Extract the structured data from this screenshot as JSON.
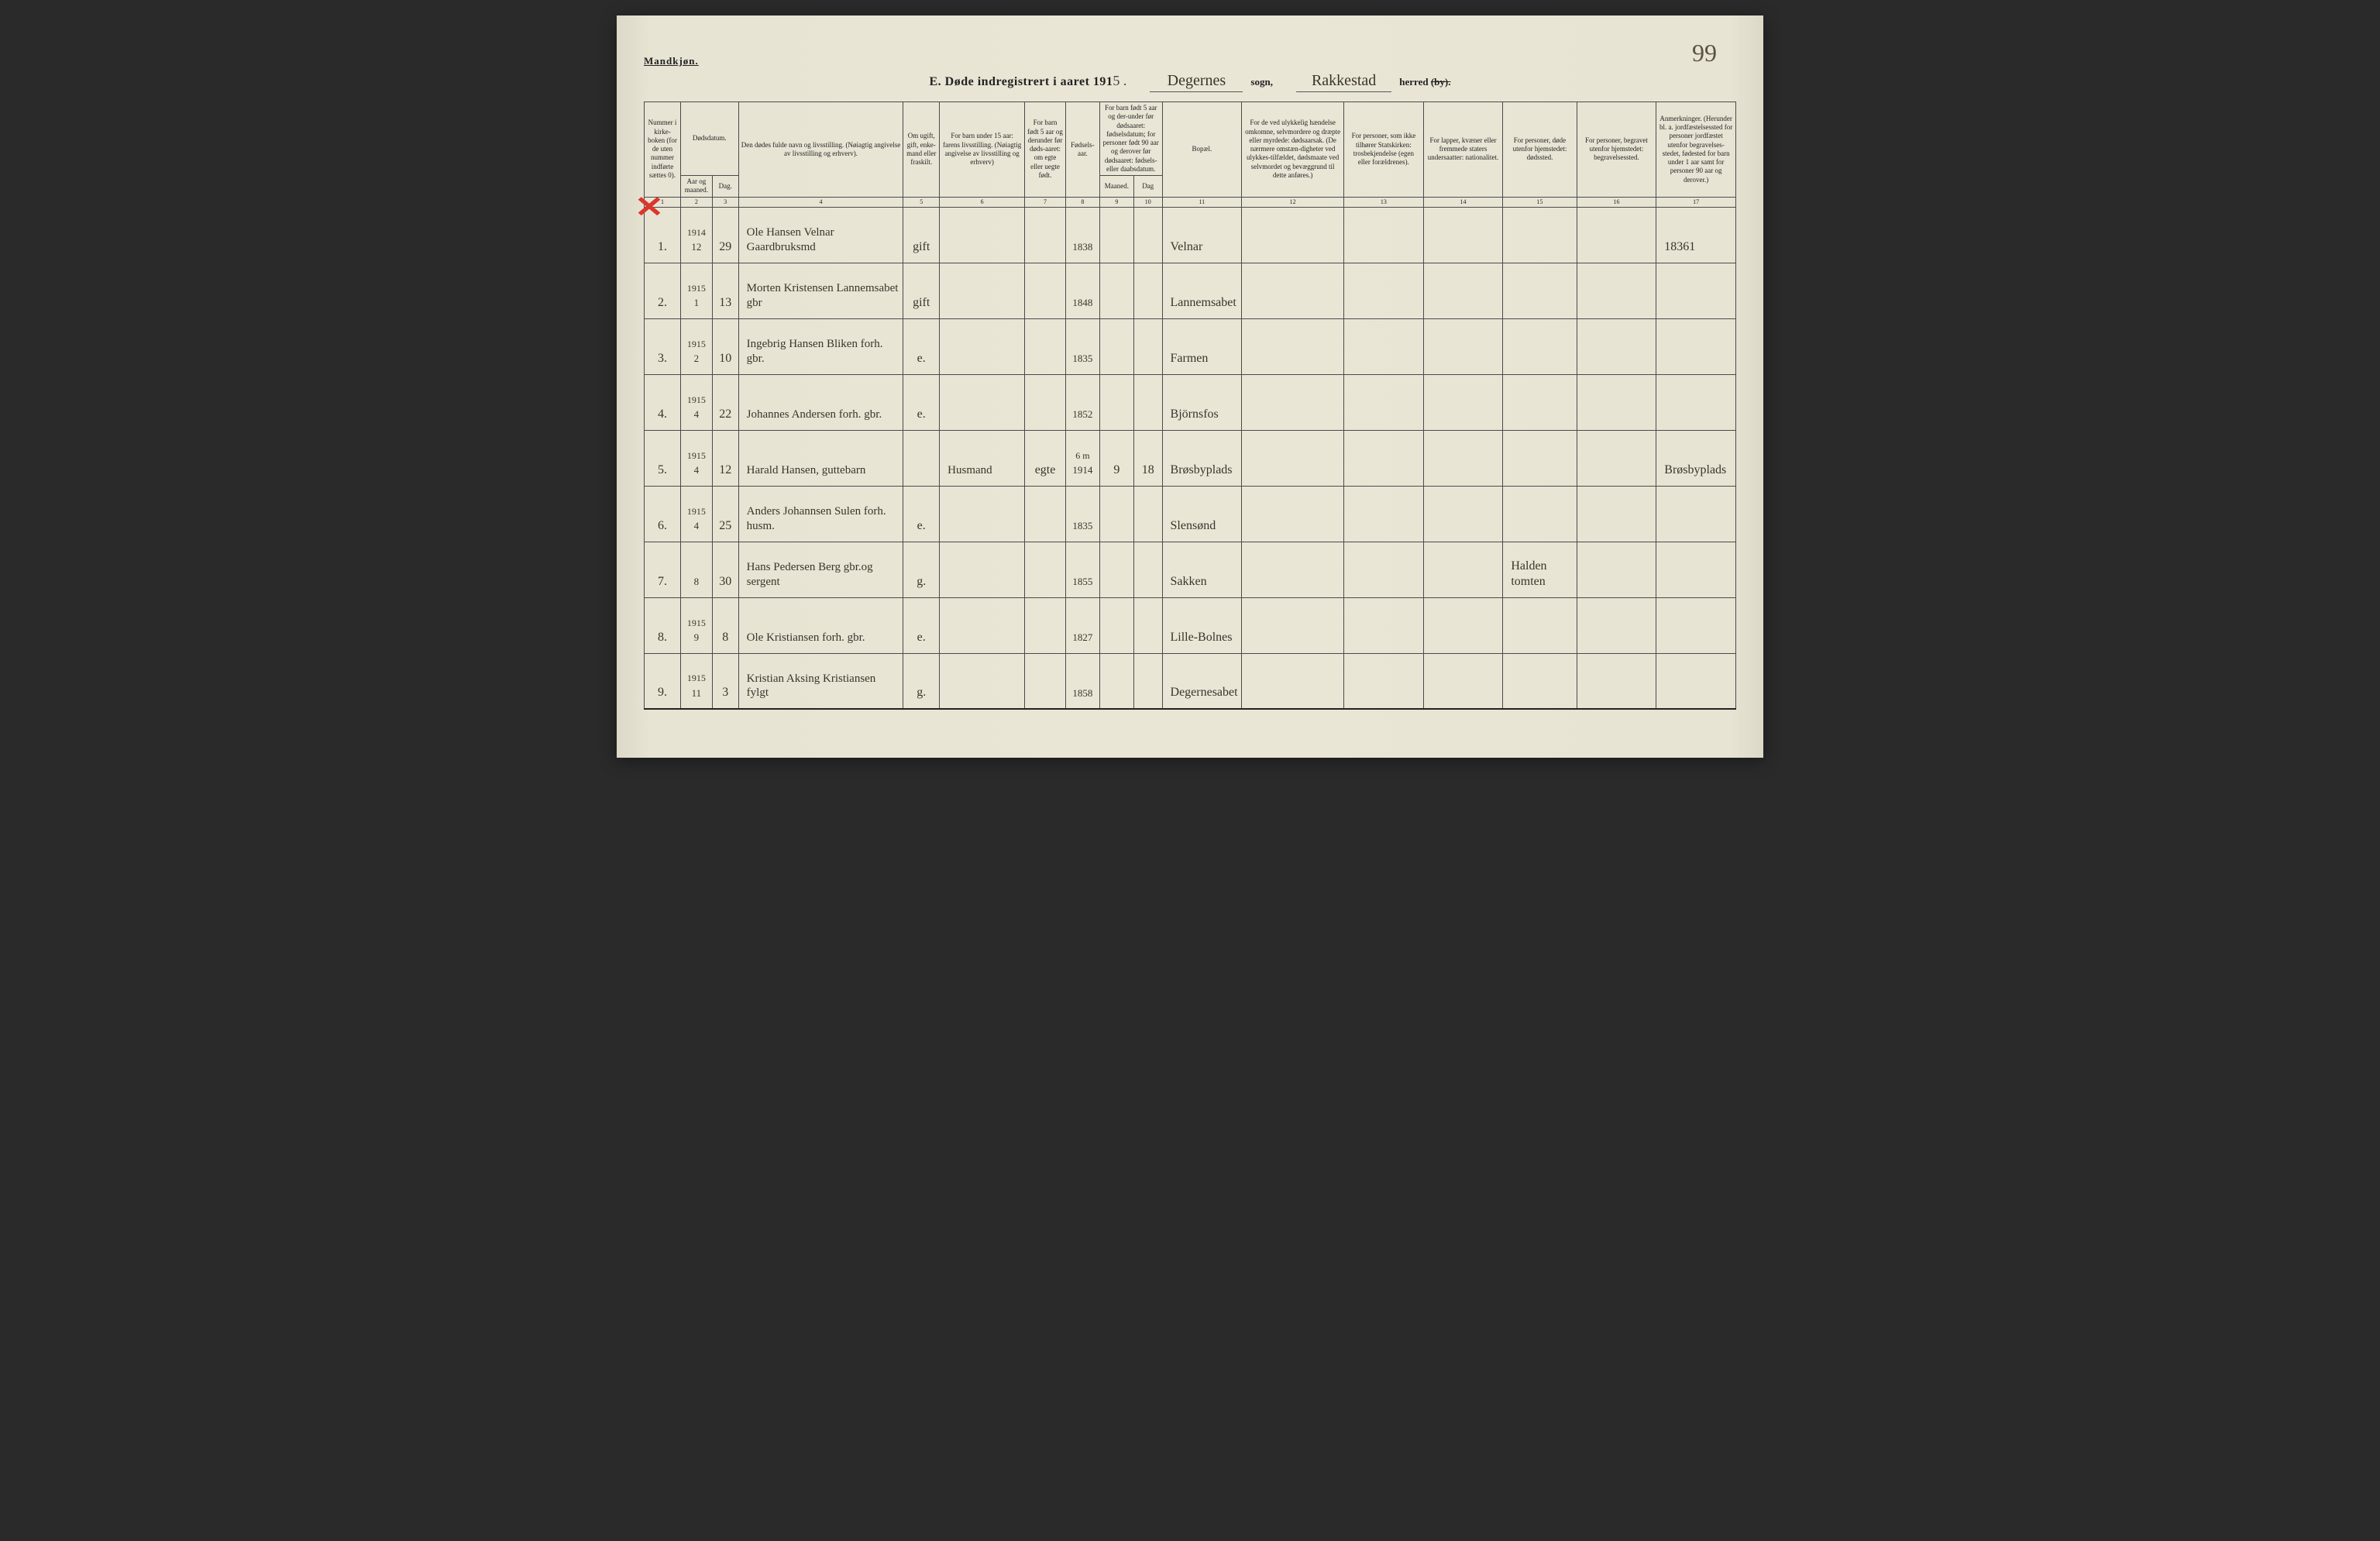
{
  "page": {
    "gender_label": "Mandkjøn.",
    "page_number": "99",
    "title_prefix": "E.  Døde indregistrert i aaret 191",
    "title_year_hand": "5 .",
    "sogn_hand": "Degernes",
    "sogn_label": "sogn,",
    "herred_hand": "Rakkestad",
    "herred_label": "herred",
    "herred_by": "(by)."
  },
  "headers": {
    "c1": "Nummer i kirke-boken (for de uten nummer indførte sættes 0).",
    "c2_top": "Dødsdatum.",
    "c2a": "Aar og maaned.",
    "c2b": "Dag.",
    "c4": "Den dødes fulde navn og livsstilling. (Nøiagtig angivelse av livsstilling og erhverv).",
    "c5": "Om ugift, gift, enke-mand eller fraskilt.",
    "c6": "For barn under 15 aar: farens livsstilling. (Nøiagtig angivelse av livsstilling og erhverv)",
    "c7": "For barn født 5 aar og derunder før døds-aaret: om egte eller uegte født.",
    "c8": "Fødsels-aar.",
    "c9_top": "For barn født 5 aar og der-under før dødsaaret: fødselsdatum; for personer født 90 aar og derover før dødsaaret: fødsels- eller daabsdatum.",
    "c9a": "Maaned.",
    "c9b": "Dag",
    "c11": "Bopæl.",
    "c12": "For de ved ulykkelig hændelse omkomne, selvmordere og dræpte eller myrdede: dødsaarsak. (De nærmere omstæn-digheter ved ulykkes-tilfældet, dødsmaate ved selvmordet og bevæggrund til dette anføres.)",
    "c13": "For personer, som ikke tilhører Statskirken: trosbekjendelse (egen eller forældrenes).",
    "c14": "For lapper, kvæner eller fremmede staters undersaatter: nationalitet.",
    "c15": "For personer, døde utenfor hjemstedet: dødssted.",
    "c16": "For personer, begravet utenfor hjemstedet: begravelsessted.",
    "c17": "Anmerkninger. (Herunder bl. a. jordfæstelsessted for personer jordfæstet utenfor begravelses-stedet, fødested for barn under 1 aar samt for personer 90 aar og derover.)"
  },
  "colnums": {
    "n1": "1",
    "n2": "2",
    "n3": "3",
    "n4": "4",
    "n5": "5",
    "n6": "6",
    "n7": "7",
    "n8": "8",
    "n9": "9",
    "n10": "10",
    "n11": "11",
    "n12": "12",
    "n13": "13",
    "n14": "14",
    "n15": "15",
    "n16": "16",
    "n17": "17"
  },
  "rows": [
    {
      "num": "1.",
      "aar": "1914",
      "maaned": "12",
      "dag": "29",
      "name": "Ole Hansen Velnar Gaardbruksmd",
      "civil": "gift",
      "father": "",
      "egte": "",
      "faar": "1838",
      "fm": "",
      "fd": "",
      "bopael": "Velnar",
      "c12": "",
      "c13": "",
      "c14": "",
      "c15": "",
      "c16": "",
      "c17": "18361"
    },
    {
      "num": "2.",
      "aar": "1915",
      "maaned": "1",
      "dag": "13",
      "name": "Morten Kristensen Lannemsabet gbr",
      "civil": "gift",
      "father": "",
      "egte": "",
      "faar": "1848",
      "fm": "",
      "fd": "",
      "bopael": "Lannemsabet",
      "c12": "",
      "c13": "",
      "c14": "",
      "c15": "",
      "c16": "",
      "c17": ""
    },
    {
      "num": "3.",
      "aar": "1915",
      "maaned": "2",
      "dag": "10",
      "name": "Ingebrig Hansen Bliken forh. gbr.",
      "civil": "e.",
      "father": "",
      "egte": "",
      "faar": "1835",
      "fm": "",
      "fd": "",
      "bopael": "Farmen",
      "c12": "",
      "c13": "",
      "c14": "",
      "c15": "",
      "c16": "",
      "c17": ""
    },
    {
      "num": "4.",
      "aar": "1915",
      "maaned": "4",
      "dag": "22",
      "name": "Johannes Andersen forh. gbr.",
      "civil": "e.",
      "father": "",
      "egte": "",
      "faar": "1852",
      "fm": "",
      "fd": "",
      "bopael": "Björnsfos",
      "c12": "",
      "c13": "",
      "c14": "",
      "c15": "",
      "c16": "",
      "c17": ""
    },
    {
      "num": "5.",
      "aar": "1915",
      "maaned": "4",
      "dag": "12",
      "name": "Harald Hansen, guttebarn",
      "civil": "",
      "father": "Husmand",
      "egte": "egte",
      "faar": "1914",
      "faar_note": "6 m",
      "fm": "9",
      "fd": "18",
      "bopael": "Brøsbyplads",
      "c12": "",
      "c13": "",
      "c14": "",
      "c15": "",
      "c16": "",
      "c17": "Brøsbyplads"
    },
    {
      "num": "6.",
      "aar": "1915",
      "maaned": "4",
      "dag": "25",
      "name": "Anders Johannsen Sulen forh. husm.",
      "civil": "e.",
      "father": "",
      "egte": "",
      "faar": "1835",
      "fm": "",
      "fd": "",
      "bopael": "Slensønd",
      "c12": "",
      "c13": "",
      "c14": "",
      "c15": "",
      "c16": "",
      "c17": ""
    },
    {
      "num": "7.",
      "aar": "",
      "maaned": "8",
      "dag": "30",
      "name": "Hans Pedersen Berg gbr.og sergent",
      "civil": "g.",
      "father": "",
      "egte": "",
      "faar": "1855",
      "fm": "",
      "fd": "",
      "bopael": "Sakken",
      "c12": "",
      "c13": "",
      "c14": "",
      "c15": "Halden tomten",
      "c16": "",
      "c17": ""
    },
    {
      "num": "8.",
      "aar": "1915",
      "maaned": "9",
      "dag": "8",
      "name": "Ole Kristiansen forh. gbr.",
      "civil": "e.",
      "father": "",
      "egte": "",
      "faar": "1827",
      "fm": "",
      "fd": "",
      "bopael": "Lille-Bolnes",
      "c12": "",
      "c13": "",
      "c14": "",
      "c15": "",
      "c16": "",
      "c17": ""
    },
    {
      "num": "9.",
      "aar": "1915",
      "maaned": "11",
      "dag": "3",
      "name": "Kristian Aksing Kristiansen fylgt",
      "civil": "g.",
      "father": "",
      "egte": "",
      "faar": "1858",
      "fm": "",
      "fd": "",
      "bopael": "Degernesabet",
      "c12": "",
      "c13": "",
      "c14": "",
      "c15": "",
      "c16": "",
      "c17": ""
    }
  ],
  "style": {
    "page_bg": "#e8e4d4",
    "border_color": "#4a4a4a",
    "header_font_size_pt": 9,
    "data_font_size_pt": 16,
    "handwriting_color": "#3a342a",
    "red_x_color": "#d9372c"
  }
}
